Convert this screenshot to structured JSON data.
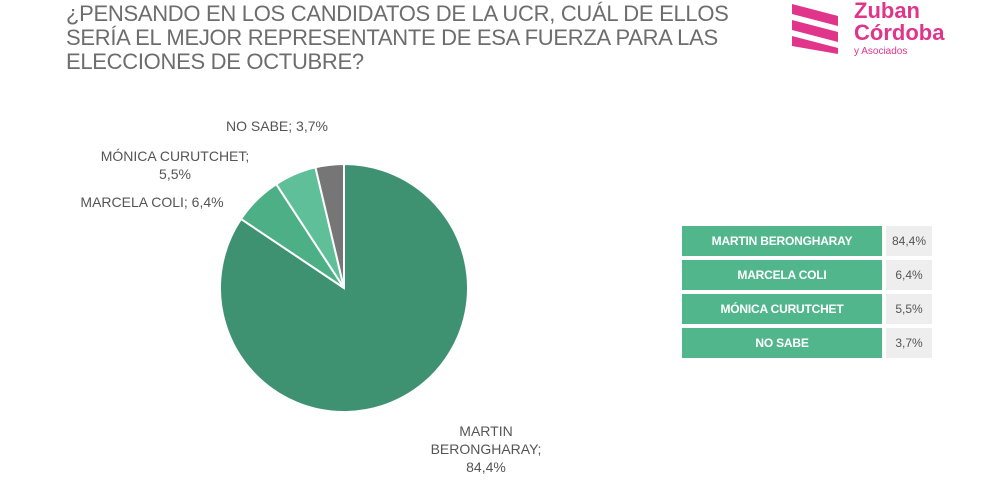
{
  "title": "¿PENSANDO EN LOS CANDIDATOS DE LA UCR, CUÁL DE ELLOS SERÍA EL MEJOR REPRESENTANTE DE ESA FUERZA PARA LAS ELECCIONES DE OCTUBRE?",
  "logo": {
    "line1": "Zuban",
    "line2": "Córdoba",
    "sub": "y Asociados",
    "color": "#e0358a"
  },
  "chart_data": {
    "type": "pie",
    "slices": [
      {
        "name": "MARTIN BERONGHARAY",
        "value": 84.4,
        "label": [
          "MARTIN",
          "BERONGHARAY;",
          "84,4%"
        ],
        "color": "#3e9272"
      },
      {
        "name": "MARCELA COLI",
        "value": 6.4,
        "label": [
          "MARCELA COLI; 6,4%"
        ],
        "color": "#4daf85"
      },
      {
        "name": "MÓNICA CURUTCHET",
        "value": 5.5,
        "label": [
          "MÓNICA CURUTCHET;",
          "5,5%"
        ],
        "color": "#5ebf98"
      },
      {
        "name": "NO SABE",
        "value": 3.7,
        "label": [
          "NO SABE; 3,7%"
        ],
        "color": "#767676"
      }
    ]
  },
  "table": [
    {
      "name": "MARTIN BERONGHARAY",
      "value": "84,4%"
    },
    {
      "name": "MARCELA COLI",
      "value": "6,4%"
    },
    {
      "name": "MÓNICA CURUTCHET",
      "value": "5,5%"
    },
    {
      "name": "NO SABE",
      "value": "3,7%"
    }
  ]
}
